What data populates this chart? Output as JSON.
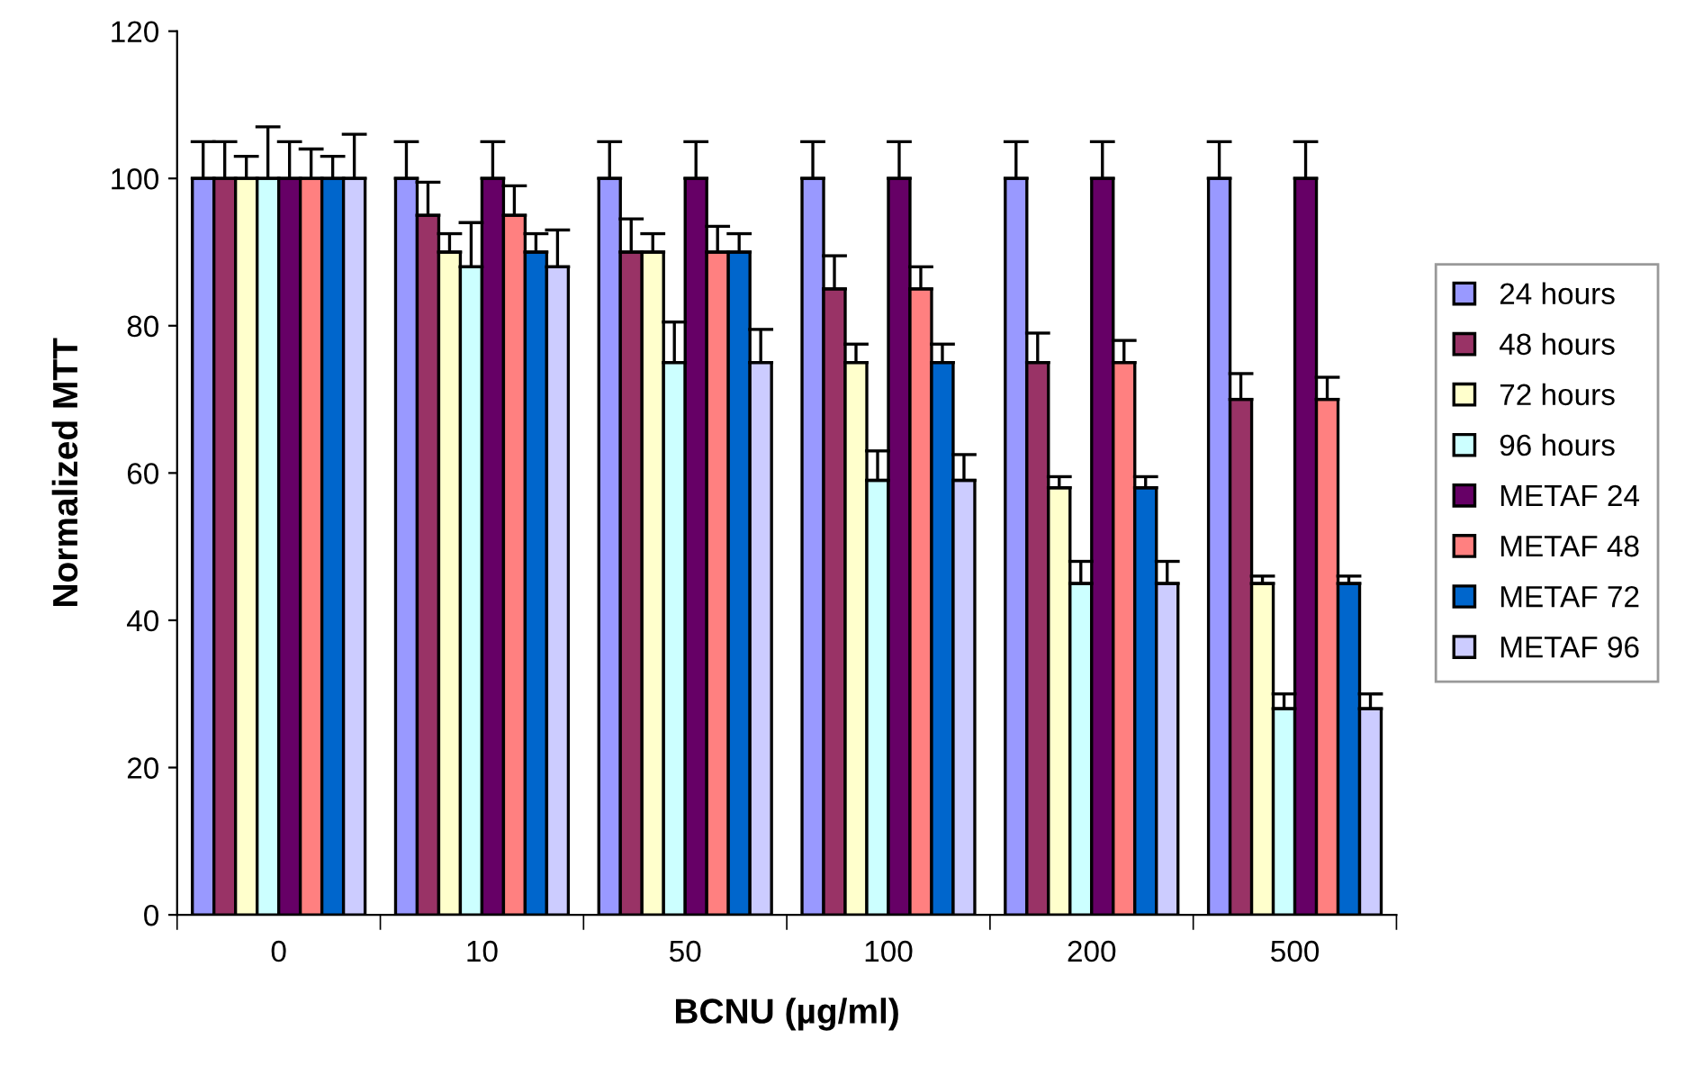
{
  "chart_data": {
    "type": "bar",
    "xlabel": "BCNU (µg/ml)",
    "ylabel": "Normalized MTT",
    "categories": [
      "0",
      "10",
      "50",
      "100",
      "200",
      "500"
    ],
    "ylim": [
      0,
      120
    ],
    "yticks": [
      0,
      20,
      40,
      60,
      80,
      100,
      120
    ],
    "grid": false,
    "legend": "right",
    "series": [
      {
        "name": "24 hours",
        "color": "#9999ff",
        "values": [
          100,
          100,
          100,
          100,
          100,
          100
        ],
        "errors": [
          [
            100,
            105
          ],
          [
            100,
            105
          ],
          [
            100,
            105
          ],
          [
            100,
            105
          ],
          [
            100,
            105
          ],
          [
            100,
            105
          ]
        ]
      },
      {
        "name": "48 hours",
        "color": "#993366",
        "values": [
          100,
          95,
          90,
          85,
          75,
          70
        ],
        "errors": [
          [
            100,
            105
          ],
          [
            95,
            99.5
          ],
          [
            90,
            94.5
          ],
          [
            85,
            89.5
          ],
          [
            75,
            79
          ],
          [
            70,
            73.5
          ]
        ]
      },
      {
        "name": "72 hours",
        "color": "#ffffcc",
        "values": [
          100,
          90,
          90,
          75,
          58,
          45
        ],
        "errors": [
          [
            100,
            103
          ],
          [
            90,
            92.5
          ],
          [
            90,
            92.5
          ],
          [
            75,
            77.5
          ],
          [
            58,
            59.5
          ],
          [
            45,
            46
          ]
        ]
      },
      {
        "name": "96 hours",
        "color": "#ccffff",
        "values": [
          100,
          88,
          75,
          59,
          45,
          28
        ],
        "errors": [
          [
            100,
            107
          ],
          [
            88,
            94
          ],
          [
            75,
            80.5
          ],
          [
            59,
            63
          ],
          [
            45,
            48
          ],
          [
            28,
            30
          ]
        ]
      },
      {
        "name": "METAF 24",
        "color": "#660066",
        "values": [
          100,
          100,
          100,
          100,
          100,
          100
        ],
        "errors": [
          [
            100,
            105
          ],
          [
            100,
            105
          ],
          [
            100,
            105
          ],
          [
            100,
            105
          ],
          [
            100,
            105
          ],
          [
            100,
            105
          ]
        ]
      },
      {
        "name": "METAF 48",
        "color": "#ff8080",
        "values": [
          100,
          95,
          90,
          85,
          75,
          70
        ],
        "errors": [
          [
            100,
            104
          ],
          [
            95,
            99
          ],
          [
            90,
            93.5
          ],
          [
            85,
            88
          ],
          [
            75,
            78
          ],
          [
            70,
            73
          ]
        ]
      },
      {
        "name": "METAF 72",
        "color": "#0066cc",
        "values": [
          100,
          90,
          90,
          75,
          58,
          45
        ],
        "errors": [
          [
            100,
            103
          ],
          [
            90,
            92.5
          ],
          [
            90,
            92.5
          ],
          [
            75,
            77.5
          ],
          [
            58,
            59.5
          ],
          [
            45,
            46
          ]
        ]
      },
      {
        "name": "METAF 96",
        "color": "#ccccff",
        "values": [
          100,
          88,
          75,
          59,
          45,
          28
        ],
        "errors": [
          [
            100,
            106
          ],
          [
            88,
            93
          ],
          [
            75,
            79.5
          ],
          [
            59,
            62.5
          ],
          [
            45,
            48
          ],
          [
            28,
            30
          ]
        ]
      }
    ]
  }
}
